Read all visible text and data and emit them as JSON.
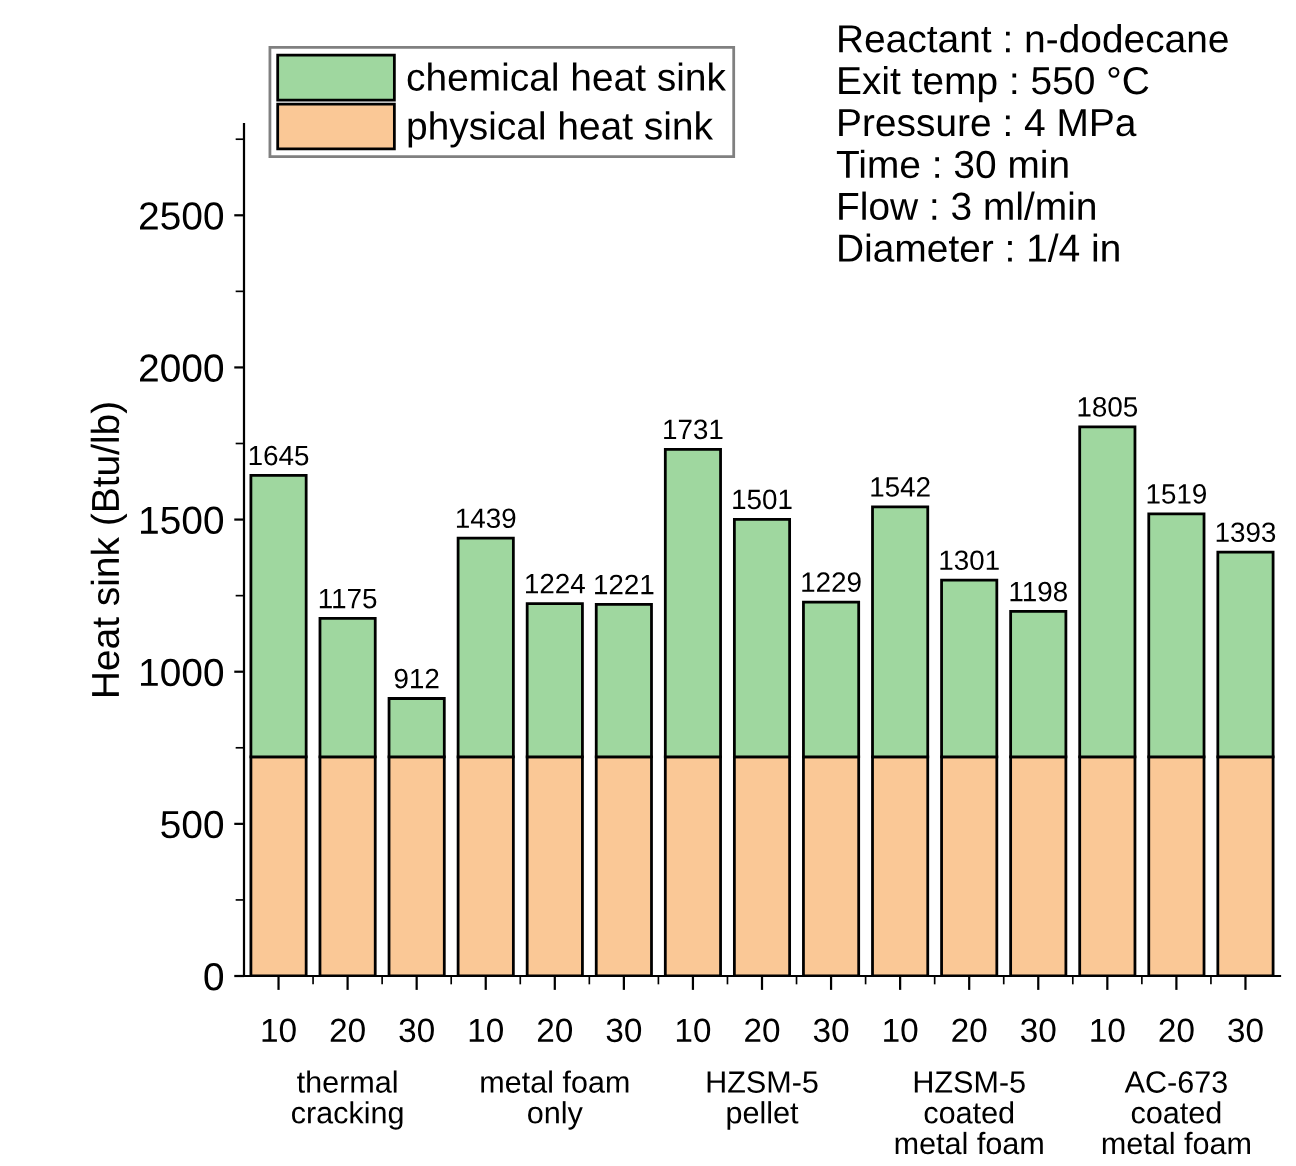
{
  "chart_data": {
    "type": "bar",
    "stacked": true,
    "ylabel": "Heat sink (Btu/lb)",
    "categories": [
      "10",
      "20",
      "30",
      "10",
      "20",
      "30",
      "10",
      "20",
      "30",
      "10",
      "20",
      "30",
      "10",
      "20",
      "30"
    ],
    "series": [
      {
        "name": "physical heat sink",
        "color": "#fac896",
        "values": [
          720,
          720,
          720,
          720,
          720,
          720,
          720,
          720,
          720,
          720,
          720,
          720,
          720,
          720,
          720
        ]
      },
      {
        "name": "chemical heat sink",
        "color": "#9fd79f",
        "values": [
          925,
          455,
          192,
          719,
          504,
          501,
          1011,
          781,
          509,
          822,
          581,
          478,
          1085,
          799,
          673
        ]
      }
    ],
    "totals": [
      "1645",
      "1175",
      "912",
      "1439",
      "1224",
      "1221",
      "1731",
      "1501",
      "1229",
      "1542",
      "1301",
      "1198",
      "1805",
      "1519",
      "1393"
    ],
    "annotations": [
      "Reactant : n-dodecane\nExit temp : 550 °C\nPressure : 4 MPa\nTime : 30 min\nFlow : 3 ml/min\nDiameter : 1/4 in",
      "thermal\ncracking",
      "metal foam\nonly",
      "HZSM-5\npellet",
      "HZSM-5\ncoated\nmetal foam",
      "AC-673\ncoated\nmetal foam"
    ],
    "ylim": [
      0,
      2800
    ],
    "yticks": [
      0,
      500,
      1000,
      1500,
      2000,
      2500
    ],
    "legend": "top left",
    "grid": false
  }
}
